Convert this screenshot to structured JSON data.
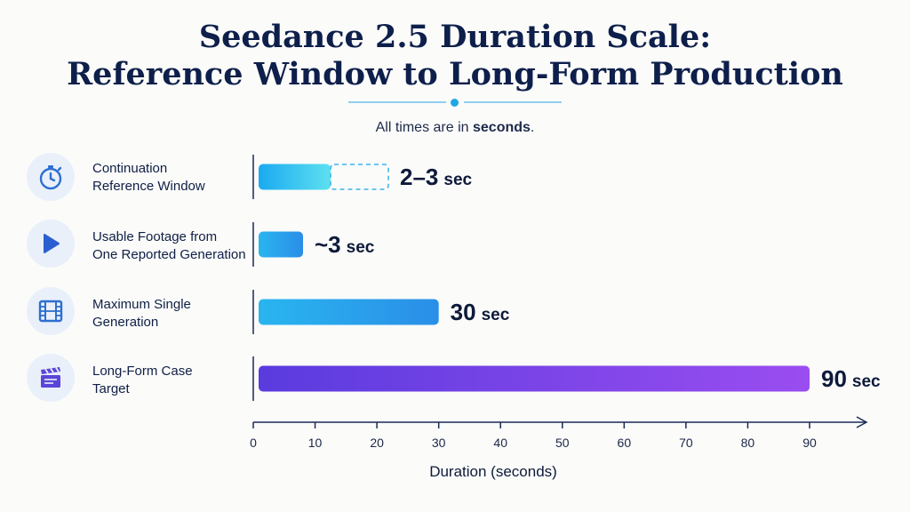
{
  "title_line1": "Seedance 2.5 Duration Scale:",
  "title_line2": "Reference Window to Long-Form Production",
  "subtitle_prefix": "All times are in ",
  "subtitle_bold": "seconds",
  "subtitle_suffix": ".",
  "rows": [
    {
      "label_line1": "Continuation",
      "label_line2": "Reference Window",
      "icon": "stopwatch-icon"
    },
    {
      "label_line1": "Usable Footage from",
      "label_line2": "One Reported Generation",
      "icon": "play-icon"
    },
    {
      "label_line1": "Maximum Single",
      "label_line2": "Generation",
      "icon": "film-strip-icon"
    },
    {
      "label_line1": "Long-Form Case",
      "label_line2": "Target",
      "icon": "clapperboard-icon"
    }
  ],
  "chart_data": {
    "type": "bar",
    "orientation": "horizontal",
    "categories": [
      "Continuation Reference Window",
      "Usable Footage from One Reported Generation",
      "Maximum Single Generation",
      "Long-Form Case Target"
    ],
    "series": [
      {
        "values": [
          {
            "min": 2,
            "max": 3
          },
          3,
          30,
          90
        ]
      }
    ],
    "value_labels": [
      {
        "num": "2–3",
        "unit": "sec"
      },
      {
        "num": "~3",
        "unit": "sec"
      },
      {
        "num": "30",
        "unit": "sec"
      },
      {
        "num": "90",
        "unit": "sec"
      }
    ],
    "xlabel": "Duration (seconds)",
    "xticks": [
      0,
      10,
      20,
      30,
      40,
      50,
      60,
      70,
      80,
      90
    ],
    "xlim": [
      0,
      90
    ],
    "grid": false,
    "colors": {
      "bar_light": "#22b4ee",
      "bar_purple_start": "#5a3bde",
      "bar_purple_end": "#9a4df0",
      "range_dashed": "#39b3ee",
      "axis": "#1a2a55",
      "icon": "#2e6fd0"
    }
  }
}
